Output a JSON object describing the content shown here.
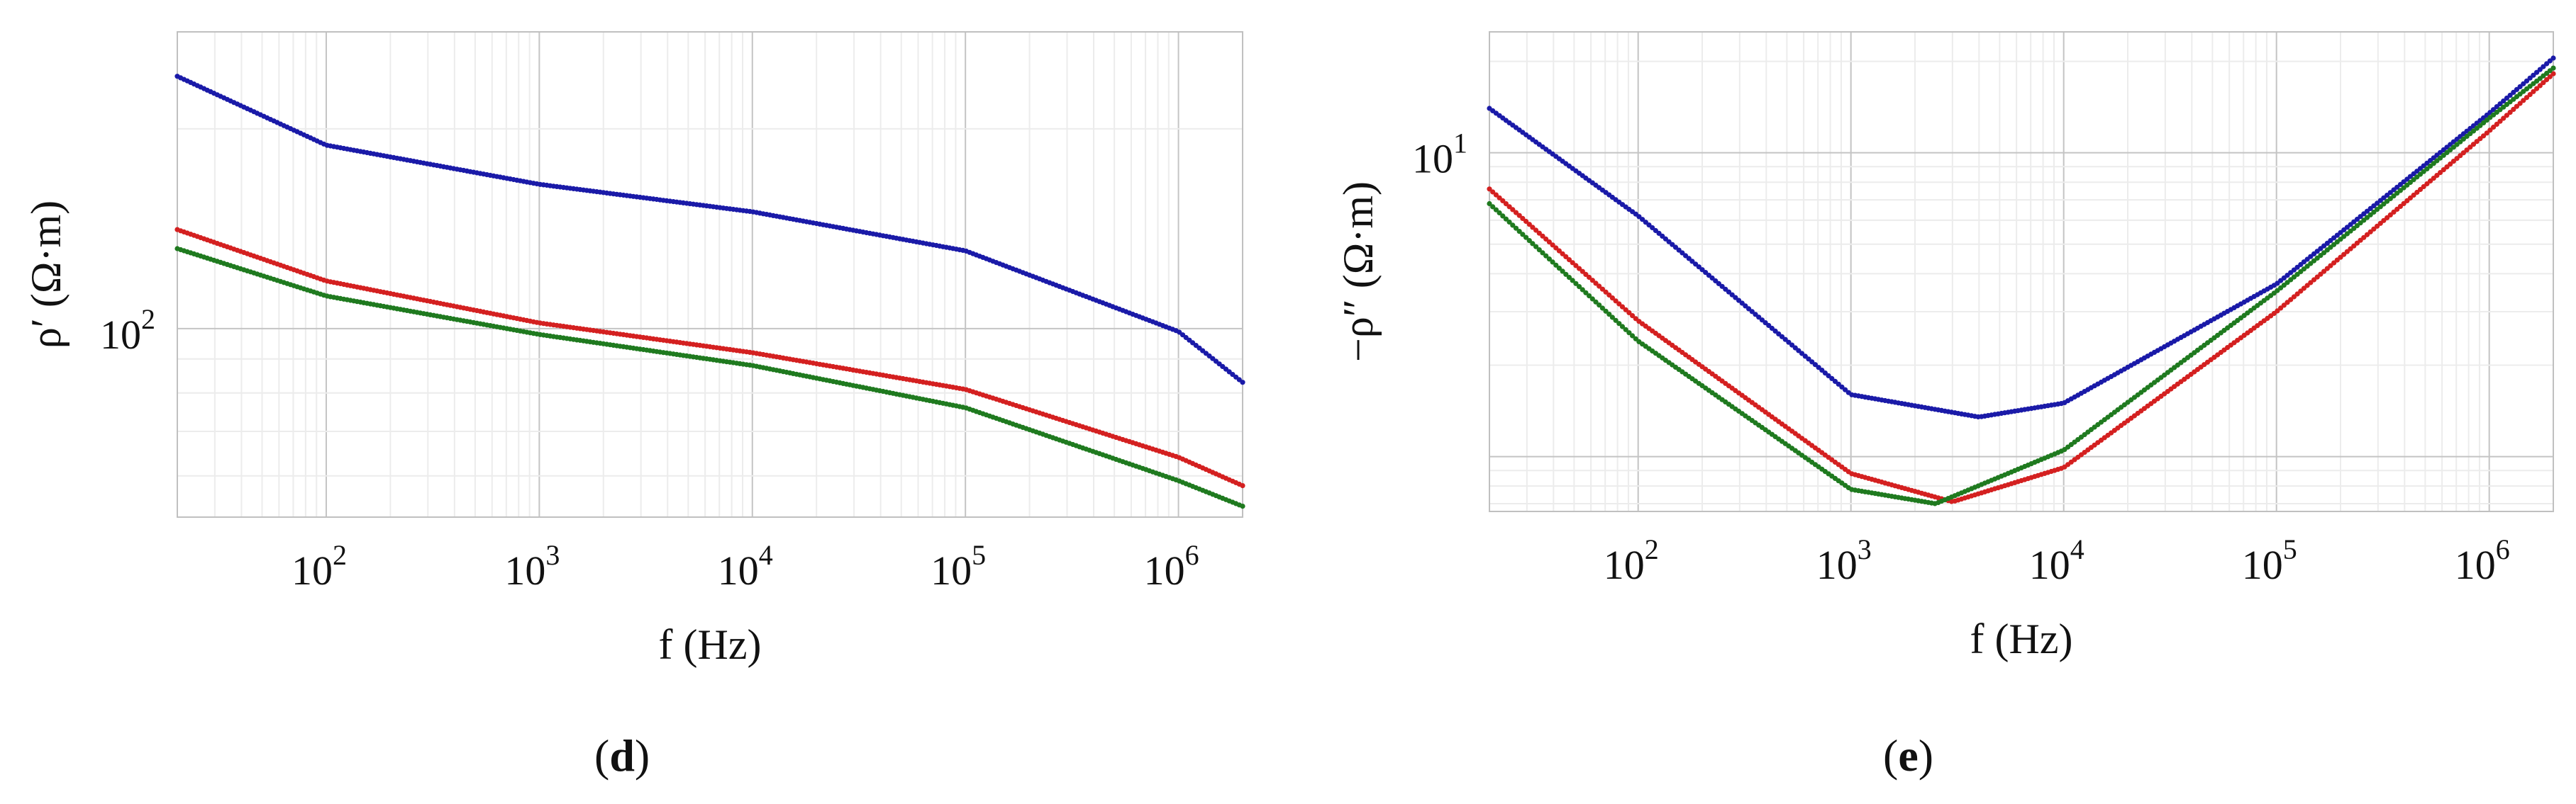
{
  "colors": {
    "blue": "#1a1aa8",
    "red": "#d42020",
    "green": "#1f7a1f",
    "grid_major": "#c4c4c4",
    "grid_minor": "#ececec",
    "frame": "#c0c0c0"
  },
  "panels": [
    {
      "label_open": "(",
      "label_letter": "d",
      "label_close": ")"
    },
    {
      "label_open": "(",
      "label_letter": "e",
      "label_close": ")"
    }
  ],
  "chart_data": [
    {
      "type": "scatter",
      "title": "",
      "xlabel": "f (Hz)",
      "ylabel": "ρ′ (Ω·m)",
      "x_scale": "log",
      "y_scale": "log",
      "xlim": [
        20,
        2000000
      ],
      "ylim": [
        52,
        280
      ],
      "x_ticks": [
        100,
        1000,
        10000,
        100000,
        1000000
      ],
      "x_tick_labels": [
        "10",
        "10",
        "10",
        "10",
        "10"
      ],
      "x_tick_exponents": [
        "2",
        "3",
        "4",
        "5",
        "6"
      ],
      "y_ticks": [
        100
      ],
      "y_tick_labels": [
        "10"
      ],
      "y_tick_exponents": [
        "2"
      ],
      "grid": true,
      "legend": "none",
      "series": [
        {
          "color": "blue",
          "x": [
            20,
            100,
            1000,
            10000,
            100000,
            1000000,
            2000000
          ],
          "values": [
            240,
            189,
            165,
            150,
            131,
            99,
            83
          ]
        },
        {
          "color": "red",
          "x": [
            20,
            100,
            1000,
            10000,
            100000,
            1000000,
            2000000
          ],
          "values": [
            141,
            118,
            102,
            92,
            81,
            64,
            58
          ]
        },
        {
          "color": "green",
          "x": [
            20,
            100,
            1000,
            10000,
            100000,
            1000000,
            2000000
          ],
          "values": [
            132,
            112,
            98,
            88,
            76,
            59,
            54
          ]
        }
      ]
    },
    {
      "type": "scatter",
      "title": "",
      "xlabel": "f (Hz)",
      "ylabel": "−ρ″ (Ω·m)",
      "x_scale": "log",
      "y_scale": "log",
      "xlim": [
        20,
        2000000
      ],
      "ylim": [
        0.66,
        25
      ],
      "x_ticks": [
        100,
        1000,
        10000,
        100000,
        1000000
      ],
      "x_tick_labels": [
        "10",
        "10",
        "10",
        "10",
        "10"
      ],
      "x_tick_exponents": [
        "2",
        "3",
        "4",
        "5",
        "6"
      ],
      "y_ticks": [
        10
      ],
      "y_tick_labels": [
        "10"
      ],
      "y_tick_exponents": [
        "1"
      ],
      "grid": true,
      "legend": "none",
      "series": [
        {
          "color": "blue",
          "x": [
            20,
            100,
            1000,
            4000,
            10000,
            100000,
            1000000,
            2000000
          ],
          "values": [
            14,
            6.2,
            1.6,
            1.35,
            1.5,
            3.7,
            13.5,
            20.5
          ]
        },
        {
          "color": "red",
          "x": [
            20,
            100,
            1000,
            3000,
            10000,
            100000,
            1000000,
            2000000
          ],
          "values": [
            7.6,
            2.8,
            0.88,
            0.71,
            0.92,
            3.0,
            11.8,
            18.2
          ]
        },
        {
          "color": "green",
          "x": [
            20,
            100,
            1000,
            2500,
            10000,
            100000,
            1000000,
            2000000
          ],
          "values": [
            6.8,
            2.4,
            0.78,
            0.7,
            1.05,
            3.5,
            13.0,
            19.0
          ]
        }
      ]
    }
  ]
}
